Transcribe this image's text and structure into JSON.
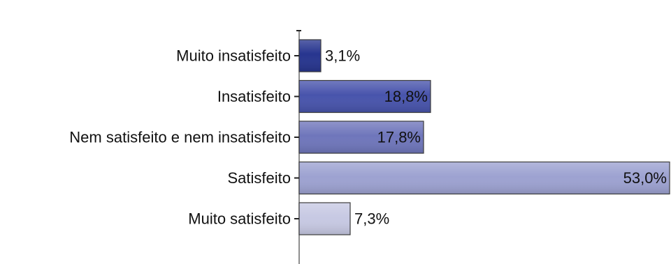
{
  "chart_data": {
    "type": "bar",
    "orientation": "horizontal",
    "title": "",
    "xlabel": "",
    "ylabel": "",
    "xlim": [
      0,
      53.0
    ],
    "grid": false,
    "legend": "none",
    "categories": [
      "Muito insatisfeito",
      "Insatisfeito",
      "Nem satisfeito e nem insatisfeito",
      "Satisfeito",
      "Muito satisfeito"
    ],
    "values": [
      3.1,
      18.8,
      17.8,
      53.0,
      7.3
    ],
    "data_labels": [
      "3,1%",
      "18,8%",
      "17,8%",
      "53,0%",
      "7,3%"
    ],
    "colors": [
      "#27358f",
      "#4854ac",
      "#6f76bb",
      "#9da2d1",
      "#c7c9e3"
    ]
  }
}
